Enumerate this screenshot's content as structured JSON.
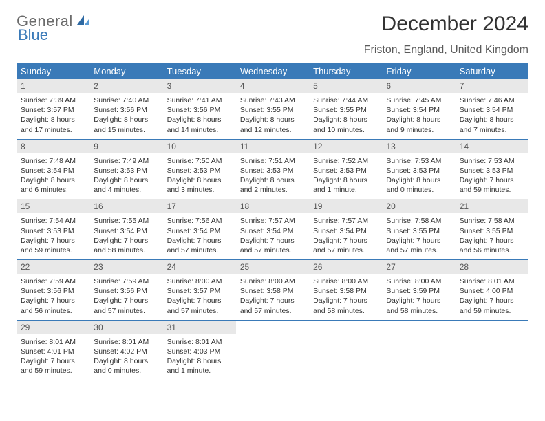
{
  "logo": {
    "word1": "General",
    "word2": "Blue"
  },
  "title": "December 2024",
  "location": "Friston, England, United Kingdom",
  "header_bg": "#3a7ab8",
  "day_header_bg": "#e8e8e8",
  "text_color": "#333333",
  "day_headers": [
    "Sunday",
    "Monday",
    "Tuesday",
    "Wednesday",
    "Thursday",
    "Friday",
    "Saturday"
  ],
  "weeks": [
    [
      {
        "n": "1",
        "sunrise": "Sunrise: 7:39 AM",
        "sunset": "Sunset: 3:57 PM",
        "daylight": "Daylight: 8 hours and 17 minutes."
      },
      {
        "n": "2",
        "sunrise": "Sunrise: 7:40 AM",
        "sunset": "Sunset: 3:56 PM",
        "daylight": "Daylight: 8 hours and 15 minutes."
      },
      {
        "n": "3",
        "sunrise": "Sunrise: 7:41 AM",
        "sunset": "Sunset: 3:56 PM",
        "daylight": "Daylight: 8 hours and 14 minutes."
      },
      {
        "n": "4",
        "sunrise": "Sunrise: 7:43 AM",
        "sunset": "Sunset: 3:55 PM",
        "daylight": "Daylight: 8 hours and 12 minutes."
      },
      {
        "n": "5",
        "sunrise": "Sunrise: 7:44 AM",
        "sunset": "Sunset: 3:55 PM",
        "daylight": "Daylight: 8 hours and 10 minutes."
      },
      {
        "n": "6",
        "sunrise": "Sunrise: 7:45 AM",
        "sunset": "Sunset: 3:54 PM",
        "daylight": "Daylight: 8 hours and 9 minutes."
      },
      {
        "n": "7",
        "sunrise": "Sunrise: 7:46 AM",
        "sunset": "Sunset: 3:54 PM",
        "daylight": "Daylight: 8 hours and 7 minutes."
      }
    ],
    [
      {
        "n": "8",
        "sunrise": "Sunrise: 7:48 AM",
        "sunset": "Sunset: 3:54 PM",
        "daylight": "Daylight: 8 hours and 6 minutes."
      },
      {
        "n": "9",
        "sunrise": "Sunrise: 7:49 AM",
        "sunset": "Sunset: 3:53 PM",
        "daylight": "Daylight: 8 hours and 4 minutes."
      },
      {
        "n": "10",
        "sunrise": "Sunrise: 7:50 AM",
        "sunset": "Sunset: 3:53 PM",
        "daylight": "Daylight: 8 hours and 3 minutes."
      },
      {
        "n": "11",
        "sunrise": "Sunrise: 7:51 AM",
        "sunset": "Sunset: 3:53 PM",
        "daylight": "Daylight: 8 hours and 2 minutes."
      },
      {
        "n": "12",
        "sunrise": "Sunrise: 7:52 AM",
        "sunset": "Sunset: 3:53 PM",
        "daylight": "Daylight: 8 hours and 1 minute."
      },
      {
        "n": "13",
        "sunrise": "Sunrise: 7:53 AM",
        "sunset": "Sunset: 3:53 PM",
        "daylight": "Daylight: 8 hours and 0 minutes."
      },
      {
        "n": "14",
        "sunrise": "Sunrise: 7:53 AM",
        "sunset": "Sunset: 3:53 PM",
        "daylight": "Daylight: 7 hours and 59 minutes."
      }
    ],
    [
      {
        "n": "15",
        "sunrise": "Sunrise: 7:54 AM",
        "sunset": "Sunset: 3:53 PM",
        "daylight": "Daylight: 7 hours and 59 minutes."
      },
      {
        "n": "16",
        "sunrise": "Sunrise: 7:55 AM",
        "sunset": "Sunset: 3:54 PM",
        "daylight": "Daylight: 7 hours and 58 minutes."
      },
      {
        "n": "17",
        "sunrise": "Sunrise: 7:56 AM",
        "sunset": "Sunset: 3:54 PM",
        "daylight": "Daylight: 7 hours and 57 minutes."
      },
      {
        "n": "18",
        "sunrise": "Sunrise: 7:57 AM",
        "sunset": "Sunset: 3:54 PM",
        "daylight": "Daylight: 7 hours and 57 minutes."
      },
      {
        "n": "19",
        "sunrise": "Sunrise: 7:57 AM",
        "sunset": "Sunset: 3:54 PM",
        "daylight": "Daylight: 7 hours and 57 minutes."
      },
      {
        "n": "20",
        "sunrise": "Sunrise: 7:58 AM",
        "sunset": "Sunset: 3:55 PM",
        "daylight": "Daylight: 7 hours and 57 minutes."
      },
      {
        "n": "21",
        "sunrise": "Sunrise: 7:58 AM",
        "sunset": "Sunset: 3:55 PM",
        "daylight": "Daylight: 7 hours and 56 minutes."
      }
    ],
    [
      {
        "n": "22",
        "sunrise": "Sunrise: 7:59 AM",
        "sunset": "Sunset: 3:56 PM",
        "daylight": "Daylight: 7 hours and 56 minutes."
      },
      {
        "n": "23",
        "sunrise": "Sunrise: 7:59 AM",
        "sunset": "Sunset: 3:56 PM",
        "daylight": "Daylight: 7 hours and 57 minutes."
      },
      {
        "n": "24",
        "sunrise": "Sunrise: 8:00 AM",
        "sunset": "Sunset: 3:57 PM",
        "daylight": "Daylight: 7 hours and 57 minutes."
      },
      {
        "n": "25",
        "sunrise": "Sunrise: 8:00 AM",
        "sunset": "Sunset: 3:58 PM",
        "daylight": "Daylight: 7 hours and 57 minutes."
      },
      {
        "n": "26",
        "sunrise": "Sunrise: 8:00 AM",
        "sunset": "Sunset: 3:58 PM",
        "daylight": "Daylight: 7 hours and 58 minutes."
      },
      {
        "n": "27",
        "sunrise": "Sunrise: 8:00 AM",
        "sunset": "Sunset: 3:59 PM",
        "daylight": "Daylight: 7 hours and 58 minutes."
      },
      {
        "n": "28",
        "sunrise": "Sunrise: 8:01 AM",
        "sunset": "Sunset: 4:00 PM",
        "daylight": "Daylight: 7 hours and 59 minutes."
      }
    ],
    [
      {
        "n": "29",
        "sunrise": "Sunrise: 8:01 AM",
        "sunset": "Sunset: 4:01 PM",
        "daylight": "Daylight: 7 hours and 59 minutes."
      },
      {
        "n": "30",
        "sunrise": "Sunrise: 8:01 AM",
        "sunset": "Sunset: 4:02 PM",
        "daylight": "Daylight: 8 hours and 0 minutes."
      },
      {
        "n": "31",
        "sunrise": "Sunrise: 8:01 AM",
        "sunset": "Sunset: 4:03 PM",
        "daylight": "Daylight: 8 hours and 1 minute."
      },
      null,
      null,
      null,
      null
    ]
  ]
}
